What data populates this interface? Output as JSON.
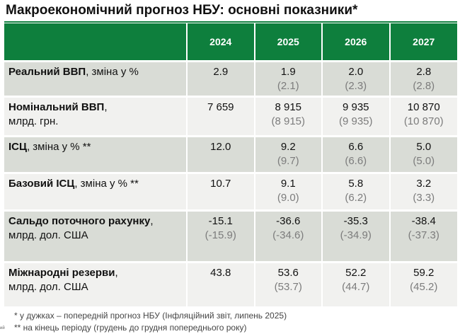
{
  "title": "Макроекономічний прогноз НБУ: основні показники*",
  "years": [
    "2024",
    "2025",
    "2026",
    "2027"
  ],
  "rows": [
    {
      "label_bold": "Реальний ВВП",
      "label_rest": ", зміна у %",
      "label_line2": "",
      "values": [
        {
          "cur": "2.9",
          "prev": ""
        },
        {
          "cur": "1.9",
          "prev": "(2.1)"
        },
        {
          "cur": "2.0",
          "prev": "(2.3)"
        },
        {
          "cur": "2.8",
          "prev": "(2.8)"
        }
      ]
    },
    {
      "label_bold": "Номінальний ВВП",
      "label_rest": ",",
      "label_line2": "млрд. грн.",
      "values": [
        {
          "cur": "7 659",
          "prev": ""
        },
        {
          "cur": "8 915",
          "prev": "(8 915)"
        },
        {
          "cur": "9 935",
          "prev": "(9 935)"
        },
        {
          "cur": "10 870",
          "prev": "(10 870)"
        }
      ]
    },
    {
      "label_bold": "ІСЦ",
      "label_rest": ", зміна у % **",
      "label_line2": "",
      "values": [
        {
          "cur": "12.0",
          "prev": ""
        },
        {
          "cur": "9.2",
          "prev": "(9.7)"
        },
        {
          "cur": "6.6",
          "prev": "(6.6)"
        },
        {
          "cur": "5.0",
          "prev": "(5.0)"
        }
      ]
    },
    {
      "label_bold": "Базовий ІСЦ",
      "label_rest": ", зміна у % **",
      "label_line2": "",
      "values": [
        {
          "cur": "10.7",
          "prev": ""
        },
        {
          "cur": "9.1",
          "prev": "(9.0)"
        },
        {
          "cur": "5.8",
          "prev": "(6.2)"
        },
        {
          "cur": "3.2",
          "prev": "(3.3)"
        }
      ]
    },
    {
      "label_bold": "Сальдо поточного рахунку",
      "label_rest": ",",
      "label_line2": "млрд. дол. США",
      "values": [
        {
          "cur": "-15.1",
          "prev": "(-15.9)"
        },
        {
          "cur": "-36.6",
          "prev": "(-34.6)"
        },
        {
          "cur": "-35.3",
          "prev": "(-34.9)"
        },
        {
          "cur": "-38.4",
          "prev": "(-37.3)"
        }
      ]
    },
    {
      "label_bold": "Міжнародні резерви",
      "label_rest": ",",
      "label_line2": "млрд. дол. США",
      "values": [
        {
          "cur": "43.8",
          "prev": ""
        },
        {
          "cur": "53.6",
          "prev": "(53.7)"
        },
        {
          "cur": "52.2",
          "prev": "(44.7)"
        },
        {
          "cur": "59.2",
          "prev": "(45.2)"
        }
      ]
    }
  ],
  "footnotes": [
    "* у дужках – попередній прогноз НБУ (Інфляційний звіт, липень 2025)",
    "** на кінець періоду (грудень до грудня попереднього року)"
  ],
  "corner_mark": "ий"
}
